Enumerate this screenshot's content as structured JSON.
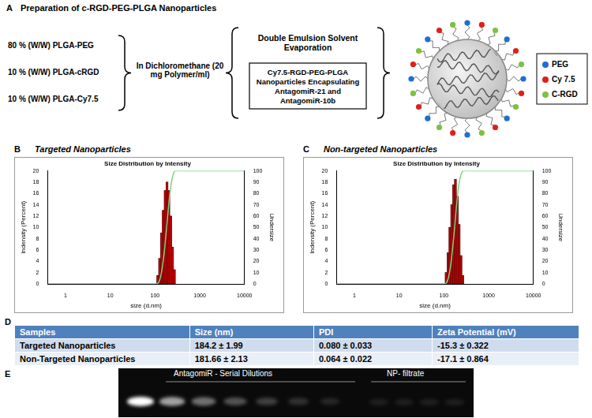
{
  "panel_a": {
    "letter": "A",
    "title": "Preparation of c-RGD-PEG-PLGA Nanoparticles",
    "components": [
      "80 % (W/W) PLGA-PEG",
      "10 % (W/W) PLGA-cRGD",
      "10 % (W/W) PLGA-Cy7.5"
    ],
    "solvent": "In Dichloromethane (20 mg Polymer/ml)",
    "method": "Double Emulsion Solvent Evaporation",
    "product": "Cy7.5-RGD-PEG-PLGA Nanoparticles Encapsulating AntagomiR-21 and AntagomiR-10b",
    "legend": [
      {
        "label": "PEG",
        "color": "#1f6fd1"
      },
      {
        "label": "Cy 7.5",
        "color": "#e0201b"
      },
      {
        "label": "C-RGD",
        "color": "#7cc242"
      }
    ]
  },
  "chart_data": [
    {
      "panel": "B",
      "panel_title": "Targeted Nanoparticles",
      "type": "histogram",
      "title": "Size Distribution by Intensity",
      "x_label": "size (d.nm)",
      "y_label": "Indensity (Percent)",
      "y2_label": "Undersize",
      "log": "x",
      "grid": false,
      "bins": [
        110,
        121,
        133,
        146,
        161,
        177,
        195,
        214,
        236,
        259,
        285
      ],
      "counts": [
        1.5,
        4.5,
        9,
        13,
        16.5,
        18,
        16.5,
        12,
        6.5,
        2.5
      ],
      "color": "#cc0000",
      "series": [
        {
          "type": "line",
          "axis": "y2",
          "color": "#7fd27f",
          "x": [
            0.4,
            110,
            121,
            133,
            146,
            161,
            177,
            195,
            214,
            236,
            259,
            285,
            10000
          ],
          "values": [
            0,
            0,
            1.5,
            6,
            15,
            28,
            44.5,
            62.5,
            79,
            91,
            97.5,
            100,
            100
          ]
        }
      ],
      "xlim": [
        0.4,
        10000
      ],
      "xticks": [
        1,
        10,
        100,
        1000,
        10000
      ],
      "ylim": [
        0,
        20
      ],
      "yticks": [
        0,
        2,
        4,
        6,
        8,
        10,
        12,
        14,
        16,
        18,
        20
      ],
      "y2lim": [
        0,
        100
      ],
      "y2ticks": [
        0,
        10,
        20,
        30,
        40,
        50,
        60,
        70,
        80,
        90,
        100
      ]
    },
    {
      "panel": "C",
      "panel_title": "Non-targeted Nanoparticles",
      "type": "histogram",
      "title": "Size Distribution by Intensity",
      "x_label": "size (d.nm)",
      "y_label": "Indensity (Percent)",
      "y2_label": "Undersize",
      "log": "x",
      "grid": false,
      "bins": [
        107,
        118,
        130,
        143,
        157,
        173,
        190,
        209,
        230,
        253,
        278
      ],
      "counts": [
        2,
        5.5,
        10,
        14,
        17.5,
        18.5,
        15.5,
        10.5,
        5,
        1.5
      ],
      "color": "#cc0000",
      "series": [
        {
          "type": "line",
          "axis": "y2",
          "color": "#7fd27f",
          "x": [
            0.4,
            107,
            118,
            130,
            143,
            157,
            173,
            190,
            209,
            230,
            253,
            278,
            10000
          ],
          "values": [
            0,
            0,
            2,
            7.5,
            17.5,
            31.5,
            49,
            67.5,
            83,
            93.5,
            98.5,
            100,
            100
          ]
        }
      ],
      "xlim": [
        0.4,
        10000
      ],
      "xticks": [
        1,
        10,
        100,
        1000,
        10000
      ],
      "ylim": [
        0,
        20
      ],
      "yticks": [
        0,
        2,
        4,
        6,
        8,
        10,
        12,
        14,
        16,
        18,
        20
      ],
      "y2lim": [
        0,
        100
      ],
      "y2ticks": [
        0,
        10,
        20,
        30,
        40,
        50,
        60,
        70,
        80,
        90,
        100
      ]
    }
  ],
  "panel_d": {
    "letter": "D",
    "table": {
      "columns": [
        "Samples",
        "Size (nm)",
        "PDI",
        "Zeta Potential (mV)"
      ],
      "rows": [
        [
          "Targeted Nanoparticles",
          "184.2 ± 1.99",
          "0.080 ± 0.033",
          "-15.3 ± 0.322"
        ],
        [
          "Non-Targeted Nanoparticles",
          "181.66 ± 2.13",
          "0.064 ± 0.022",
          "-17.1 ± 0.864"
        ]
      ]
    }
  },
  "panel_e": {
    "letter": "E",
    "labels": [
      "AntagomiR - Serial Dilutions",
      "NP- filtrate"
    ]
  }
}
